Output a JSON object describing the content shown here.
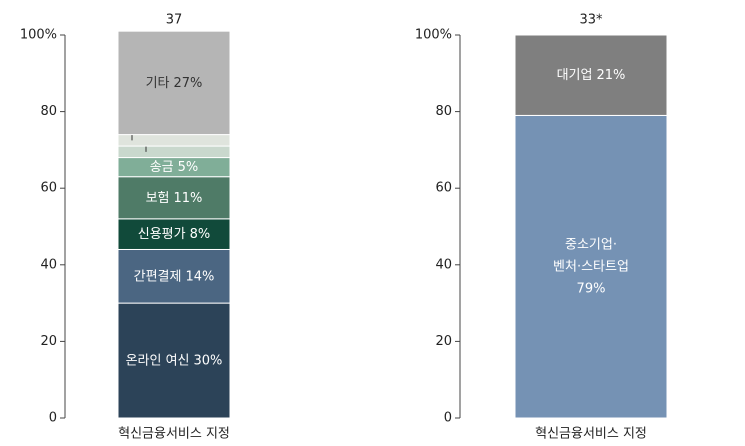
{
  "chart_data": [
    {
      "type": "stacked-bar",
      "total_label": "37",
      "categories": [
        "혁신금융서비스 지정"
      ],
      "ylim": [
        0,
        100
      ],
      "yticks": [
        0,
        20,
        40,
        60,
        80,
        {
          "value": 100,
          "label": "100%"
        }
      ],
      "series": [
        {
          "name": "온라인 여신",
          "color": "#2c4358",
          "values": [
            30
          ],
          "value_labels": [
            "30%"
          ]
        },
        {
          "name": "간편결제",
          "color": "#4b6682",
          "values": [
            14
          ],
          "value_labels": [
            "14%"
          ]
        },
        {
          "name": "신용평가",
          "color": "#114a3a",
          "values": [
            8
          ],
          "value_labels": [
            "8%"
          ]
        },
        {
          "name": "보험",
          "color": "#4f7b67",
          "values": [
            11
          ],
          "value_labels": [
            "11%"
          ]
        },
        {
          "name": "송금",
          "color": "#80ae98",
          "values": [
            5
          ],
          "value_labels": [
            "5%"
          ]
        },
        {
          "name": "환전",
          "color": "#c9d8cd",
          "values": [
            3
          ],
          "value_labels": [
            "3%"
          ]
        },
        {
          "name": "P2P",
          "color": "#dfe4dd",
          "values": [
            3
          ],
          "value_labels": [
            "3%"
          ]
        },
        {
          "name": "기타",
          "color": "#b5b5b5",
          "values": [
            27
          ],
          "value_labels": [
            "27%"
          ]
        }
      ]
    },
    {
      "type": "stacked-bar",
      "total_label": "33*",
      "categories": [
        "혁신금융서비스 지정"
      ],
      "ylim": [
        0,
        100
      ],
      "yticks": [
        0,
        20,
        40,
        60,
        80,
        {
          "value": 100,
          "label": "100%"
        }
      ],
      "series": [
        {
          "name": "중소기업·벤처·스타트업",
          "color": "#7592b4",
          "values": [
            79
          ],
          "value_labels": [
            "79%"
          ]
        },
        {
          "name": "대기업",
          "color": "#7f7f7f",
          "values": [
            21
          ],
          "value_labels": [
            "21%"
          ]
        }
      ]
    }
  ]
}
